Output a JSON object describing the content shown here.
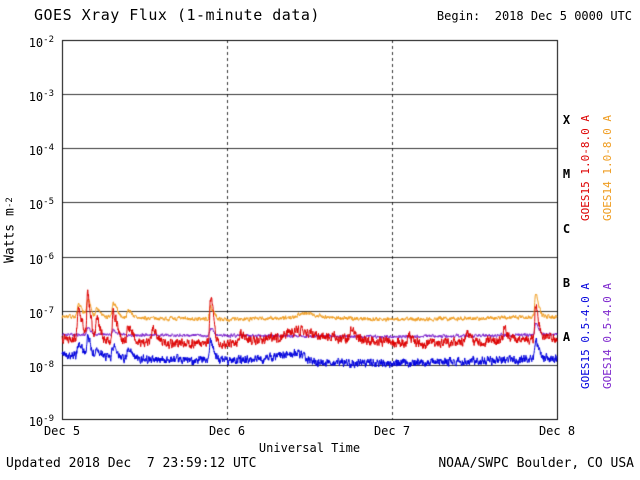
{
  "header": {
    "title": "GOES Xray Flux (1-minute data)",
    "begin_label": "Begin:  2018 Dec 5 0000 UTC"
  },
  "footer": {
    "updated": "Updated 2018 Dec  7 23:59:12 UTC",
    "source": "NOAA/SWPC Boulder, CO USA"
  },
  "chart_data": {
    "type": "line",
    "title": "GOES Xray Flux (1-minute data)",
    "xlabel": "Universal Time",
    "ylabel": "Watts m-2",
    "ylabel_parts": {
      "main": "Watts m",
      "sup": "-2"
    },
    "y_tick_base": "10",
    "y_ticks_exponents": [
      -2,
      -3,
      -4,
      -5,
      -6,
      -7,
      -8,
      -9
    ],
    "ylim_log": [
      -9,
      -2
    ],
    "x_range_days": 3,
    "x_ticks": [
      {
        "label": "Dec 5",
        "t": 0
      },
      {
        "label": "Dec 6",
        "t": 1
      },
      {
        "label": "Dec 7",
        "t": 2
      },
      {
        "label": "Dec 8",
        "t": 3
      }
    ],
    "grid": {
      "horizontal": "solid-each-decade",
      "vertical": "dashed-at-day-boundaries"
    },
    "flare_classes": [
      {
        "label": "X",
        "between": [
          -4,
          -3
        ]
      },
      {
        "label": "M",
        "between": [
          -5,
          -4
        ]
      },
      {
        "label": "C",
        "between": [
          -6,
          -5
        ]
      },
      {
        "label": "B",
        "between": [
          -7,
          -6
        ]
      },
      {
        "label": "A",
        "between": [
          -8,
          -7
        ]
      }
    ],
    "legend": [
      {
        "label": "GOES15 1.0-8.0 A",
        "color": "#dd0000",
        "column": 0,
        "row": 0
      },
      {
        "label": "GOES14 1.0-8.0 A",
        "color": "#ef9c20",
        "column": 1,
        "row": 0
      },
      {
        "label": "GOES15 0.5-4.0 A",
        "color": "#0000dd",
        "column": 0,
        "row": 1
      },
      {
        "label": "GOES14 0.5-4.0 A",
        "color": "#7d26cd",
        "column": 1,
        "row": 1
      }
    ],
    "series": [
      {
        "name": "GOES14 1.0-8.0 A",
        "satellite": "GOES14",
        "band": "1.0-8.0 A",
        "color": "#ef9c20",
        "approx_background_wm2": 7e-08,
        "noise_log": 0.022,
        "seed": 7,
        "keypoints": [
          [
            0,
            -7.1
          ],
          [
            0.5,
            -7.14
          ],
          [
            1.0,
            -7.16
          ],
          [
            1.5,
            -7.13
          ],
          [
            2.0,
            -7.16
          ],
          [
            2.5,
            -7.14
          ],
          [
            3,
            -7.11
          ]
        ],
        "spikes": [
          {
            "t": 0.1,
            "a": 0.2,
            "w": 0.012
          },
          {
            "t": 0.155,
            "a": 0.3,
            "w": 0.01
          },
          {
            "t": 0.21,
            "a": 0.15,
            "w": 0.01
          },
          {
            "t": 0.31,
            "a": 0.25,
            "w": 0.012
          },
          {
            "t": 0.4,
            "a": 0.15,
            "w": 0.011
          },
          {
            "t": 0.9,
            "a": 0.22,
            "w": 0.01
          },
          {
            "t": 1.45,
            "a": 0.08,
            "w": 0.05
          },
          {
            "t": 2.87,
            "a": 0.42,
            "w": 0.009
          }
        ]
      },
      {
        "name": "GOES14 0.5-4.0 A",
        "satellite": "GOES14",
        "band": "0.5-4.0 A",
        "color": "#7d26cd",
        "approx_background_wm2": 3.5e-08,
        "noise_log": 0.018,
        "seed": 21,
        "keypoints": [
          [
            0,
            -7.44
          ],
          [
            1,
            -7.46
          ],
          [
            2,
            -7.48
          ],
          [
            3,
            -7.44
          ]
        ],
        "spikes": [
          {
            "t": 0.155,
            "a": 0.12,
            "w": 0.01
          },
          {
            "t": 0.31,
            "a": 0.09,
            "w": 0.012
          },
          {
            "t": 0.9,
            "a": 0.12,
            "w": 0.01
          },
          {
            "t": 2.87,
            "a": 0.2,
            "w": 0.009
          }
        ]
      },
      {
        "name": "GOES15 0.5-4.0 A",
        "satellite": "GOES15",
        "band": "0.5-4.0 A",
        "color": "#0000dd",
        "approx_background_wm2": 1.3e-08,
        "noise_log": 0.045,
        "seed": 42,
        "keypoints": [
          [
            0,
            -7.8
          ],
          [
            0.3,
            -7.87
          ],
          [
            0.8,
            -7.92
          ],
          [
            1.2,
            -7.9
          ],
          [
            1.42,
            -7.78
          ],
          [
            1.52,
            -7.95
          ],
          [
            2.0,
            -7.97
          ],
          [
            2.5,
            -7.93
          ],
          [
            3,
            -7.87
          ]
        ],
        "spikes": [
          {
            "t": 0.1,
            "a": 0.18,
            "w": 0.012
          },
          {
            "t": 0.155,
            "a": 0.35,
            "w": 0.009
          },
          {
            "t": 0.21,
            "a": 0.15,
            "w": 0.01
          },
          {
            "t": 0.31,
            "a": 0.22,
            "w": 0.012
          },
          {
            "t": 0.4,
            "a": 0.12,
            "w": 0.011
          },
          {
            "t": 0.9,
            "a": 0.4,
            "w": 0.009
          },
          {
            "t": 2.87,
            "a": 0.3,
            "w": 0.009
          }
        ]
      },
      {
        "name": "GOES15 1.0-8.0 A",
        "satellite": "GOES15",
        "band": "1.0-8.0 A",
        "color": "#dd0000",
        "approx_background_wm2": 2.8e-08,
        "noise_log": 0.05,
        "seed": 13,
        "keypoints": [
          [
            0,
            -7.48
          ],
          [
            0.2,
            -7.55
          ],
          [
            0.7,
            -7.6
          ],
          [
            1.0,
            -7.62
          ],
          [
            1.3,
            -7.5
          ],
          [
            1.42,
            -7.35
          ],
          [
            1.55,
            -7.45
          ],
          [
            1.8,
            -7.55
          ],
          [
            2.2,
            -7.6
          ],
          [
            2.6,
            -7.56
          ],
          [
            3,
            -7.5
          ]
        ],
        "spikes": [
          {
            "t": 0.1,
            "a": 0.5,
            "w": 0.012
          },
          {
            "t": 0.155,
            "a": 0.8,
            "w": 0.009
          },
          {
            "t": 0.21,
            "a": 0.4,
            "w": 0.01
          },
          {
            "t": 0.31,
            "a": 0.5,
            "w": 0.012
          },
          {
            "t": 0.4,
            "a": 0.3,
            "w": 0.011
          },
          {
            "t": 0.55,
            "a": 0.25,
            "w": 0.012
          },
          {
            "t": 0.9,
            "a": 0.85,
            "w": 0.009
          },
          {
            "t": 1.08,
            "a": 0.15,
            "w": 0.015
          },
          {
            "t": 1.75,
            "a": 0.18,
            "w": 0.014
          },
          {
            "t": 2.1,
            "a": 0.12,
            "w": 0.012
          },
          {
            "t": 2.45,
            "a": 0.15,
            "w": 0.01
          },
          {
            "t": 2.68,
            "a": 0.2,
            "w": 0.009
          },
          {
            "t": 2.87,
            "a": 0.6,
            "w": 0.009
          }
        ]
      }
    ]
  }
}
